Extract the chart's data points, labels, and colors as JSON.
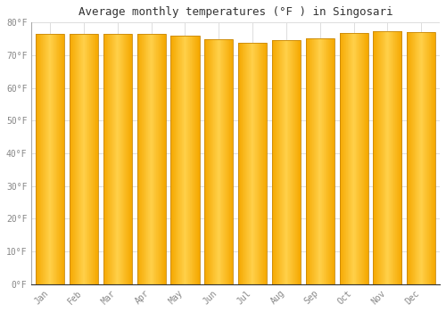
{
  "title": "Average monthly temperatures (°F ) in Singosari",
  "months": [
    "Jan",
    "Feb",
    "Mar",
    "Apr",
    "May",
    "Jun",
    "Jul",
    "Aug",
    "Sep",
    "Oct",
    "Nov",
    "Dec"
  ],
  "values": [
    76.6,
    76.5,
    76.5,
    76.5,
    76.1,
    74.8,
    73.9,
    74.5,
    75.2,
    76.8,
    77.4,
    77.0
  ],
  "bar_color_center": "#FFD04A",
  "bar_color_edge": "#F5A800",
  "bar_edge_color": "#C8880A",
  "background_color": "#FFFFFF",
  "plot_bg_color": "#FFFFFF",
  "ylim": [
    0,
    80
  ],
  "yticks": [
    0,
    10,
    20,
    30,
    40,
    50,
    60,
    70,
    80
  ],
  "ytick_labels": [
    "0°F",
    "10°F",
    "20°F",
    "30°F",
    "40°F",
    "50°F",
    "60°F",
    "70°F",
    "80°F"
  ],
  "title_fontsize": 9,
  "tick_fontsize": 7,
  "grid_color": "#dddddd",
  "title_color": "#333333",
  "tick_color": "#888888",
  "bar_width": 0.85
}
